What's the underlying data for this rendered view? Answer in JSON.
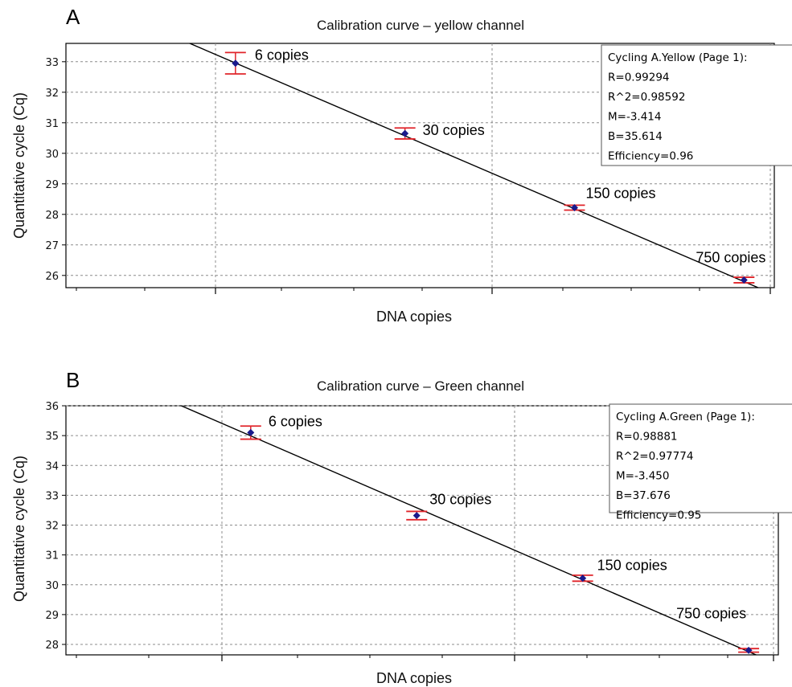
{
  "chart_data": [
    {
      "type": "scatter",
      "panel": "A",
      "title": "Calibration curve – yellow channel",
      "xlabel": "DNA copies",
      "ylabel": "Quantitative cycle (Cq)",
      "ylim": [
        25.6,
        33.6
      ],
      "yticks": [
        26,
        27,
        28,
        29,
        30,
        31,
        32,
        33
      ],
      "xscale": "log",
      "xlim": [
        1.2,
        1000
      ],
      "grid": true,
      "fit_line": {
        "slope": -3.414,
        "intercept": 35.614
      },
      "series": [
        {
          "points": [
            {
              "label": "6 copies",
              "x": 6,
              "y": 32.95,
              "err": 0.35
            },
            {
              "label": "30 copies",
              "x": 30,
              "y": 30.65,
              "err": 0.18
            },
            {
              "label": "150 copies",
              "x": 150,
              "y": 28.22,
              "err": 0.08
            },
            {
              "label": "750 copies",
              "x": 750,
              "y": 25.85,
              "err": 0.09
            }
          ]
        }
      ],
      "stats_box": {
        "header": "Cycling A.Yellow (Page 1):",
        "lines": [
          "R=0.99294",
          "R^2=0.98592",
          "M=-3.414",
          "B=35.614",
          "Efficiency=0.96"
        ]
      }
    },
    {
      "type": "scatter",
      "panel": "B",
      "title": "Calibration curve – Green channel",
      "xlabel": "DNA copies",
      "ylabel": "Quantitative cycle (Cq)",
      "ylim": [
        27.65,
        36
      ],
      "yticks": [
        28,
        29,
        30,
        31,
        32,
        33,
        34,
        35,
        36
      ],
      "xscale": "log",
      "xlim": [
        1,
        1000
      ],
      "grid": true,
      "fit_line": {
        "slope": -3.45,
        "intercept": 37.676
      },
      "series": [
        {
          "points": [
            {
              "label": "6 copies",
              "x": 6,
              "y": 35.1,
              "err": 0.22
            },
            {
              "label": "30 copies",
              "x": 30,
              "y": 32.32,
              "err": 0.14
            },
            {
              "label": "150 copies",
              "x": 150,
              "y": 30.22,
              "err": 0.1
            },
            {
              "label": "750 copies",
              "x": 750,
              "y": 27.8,
              "err": 0.06
            }
          ]
        }
      ],
      "stats_box": {
        "header": "Cycling A.Green (Page 1):",
        "lines": [
          "R=0.98881",
          "R^2=0.97774",
          "M=-3.450",
          "B=37.676",
          "Efficiency=0.95"
        ]
      }
    }
  ],
  "colors": {
    "axis": "#000000",
    "grid": "#8c8c8c",
    "error_bar": "#e0242a",
    "point": "#1a1a8c",
    "fit_line": "#000000"
  }
}
